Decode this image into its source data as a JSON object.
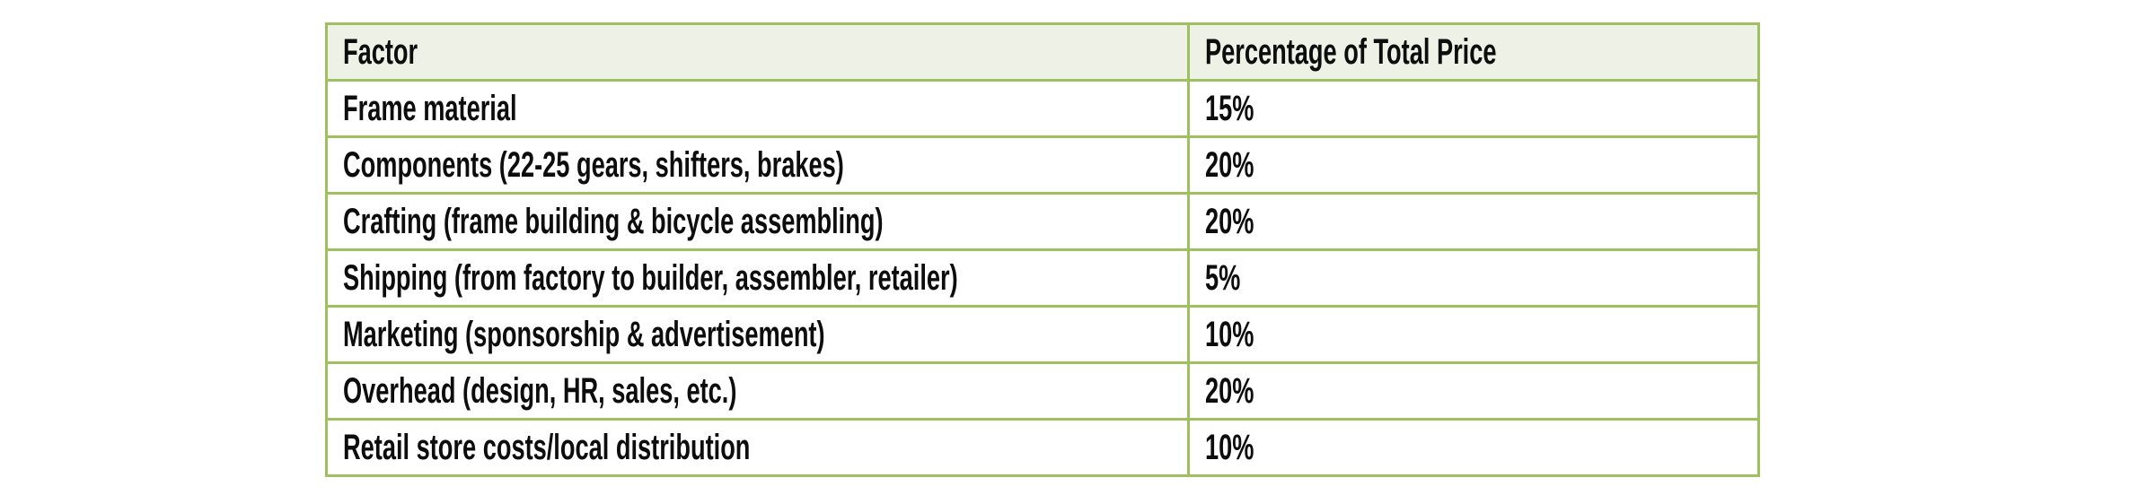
{
  "table": {
    "columns": [
      {
        "key": "factor",
        "label": "Factor"
      },
      {
        "key": "percentage",
        "label": "Percentage of Total Price"
      }
    ],
    "rows": [
      {
        "factor": "Frame material",
        "percentage": "15%"
      },
      {
        "factor": "Components (22-25 gears, shifters, brakes)",
        "percentage": "20%"
      },
      {
        "factor": "Crafting (frame building & bicycle assembling)",
        "percentage": "20%"
      },
      {
        "factor": "Shipping (from factory to builder, assembler, retailer)",
        "percentage": "5%"
      },
      {
        "factor": "Marketing (sponsorship & advertisement)",
        "percentage": "10%"
      },
      {
        "factor": "Overhead (design, HR, sales, etc.)",
        "percentage": "20%"
      },
      {
        "factor": "Retail store costs/local distribution",
        "percentage": "10%"
      }
    ],
    "colors": {
      "border": "#9ec05e",
      "header_bg": "#eef2e6",
      "row_bg": "#ffffff",
      "text": "#0d0d0d"
    }
  }
}
